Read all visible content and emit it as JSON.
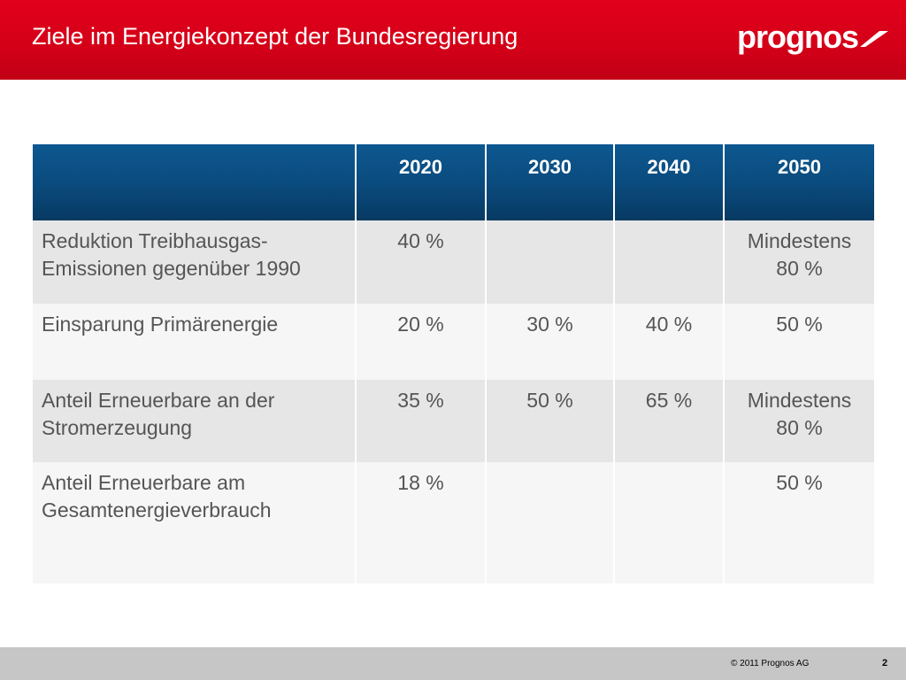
{
  "header": {
    "title": "Ziele im Energiekonzept der Bundesregierung",
    "logo_text": "prognos",
    "background_color": "#d30018"
  },
  "table": {
    "columns": [
      "",
      "2020",
      "2030",
      "2040",
      "2050"
    ],
    "header_color": "#0a4a7c",
    "rows": [
      {
        "label": "Reduktion Treibhausgas-Emissionen gegenüber 1990",
        "values": [
          "40 %",
          "",
          "",
          "Mindestens 80 %"
        ]
      },
      {
        "label": "Einsparung Primärenergie",
        "values": [
          "20 %",
          "30 %",
          "40 %",
          "50 %"
        ]
      },
      {
        "label": "Anteil Erneuerbare an der Stromerzeugung",
        "values": [
          "35 %",
          "50 %",
          "65 %",
          "Mindestens 80 %"
        ]
      },
      {
        "label": "Anteil Erneuerbare am Gesamtenergieverbrauch",
        "values": [
          "18 %",
          "",
          "",
          "50 %"
        ]
      }
    ]
  },
  "footer": {
    "copyright": "© 2011 Prognos AG",
    "page_number": "2"
  }
}
